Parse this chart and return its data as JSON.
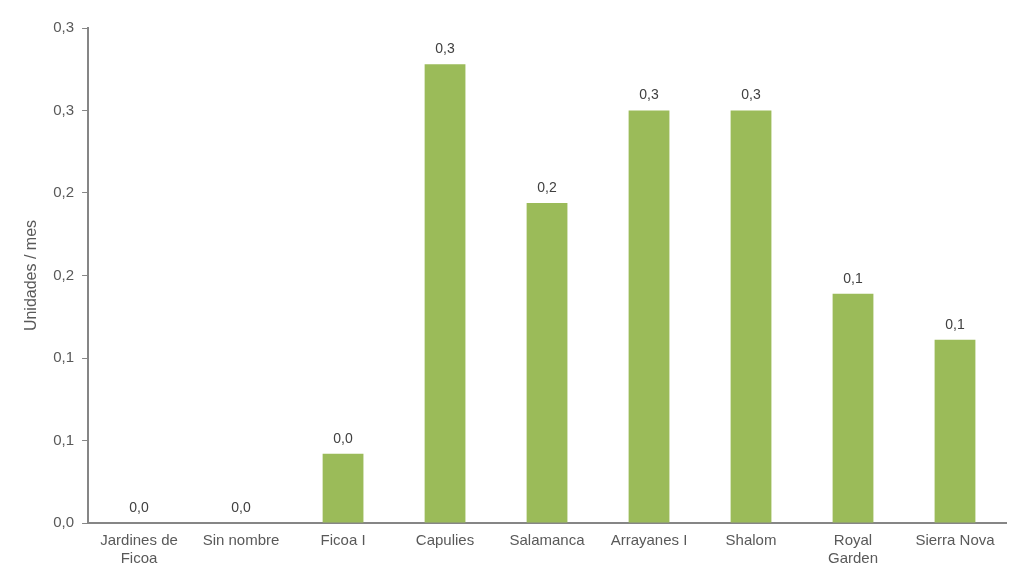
{
  "chart_data": {
    "type": "bar",
    "ylabel": "Unidades / mes",
    "categories": [
      "Jardines de Ficoa",
      "Sin nombre",
      "Ficoa I",
      "Capulies",
      "Salamanca",
      "Arrayanes I",
      "Shalom",
      "Royal Garden",
      "Sierra Nova"
    ],
    "values": [
      0,
      0,
      0.042,
      0.278,
      0.194,
      0.25,
      0.25,
      0.139,
      0.111
    ],
    "value_labels": [
      "0,0",
      "0,0",
      "0,0",
      "0,3",
      "0,2",
      "0,3",
      "0,3",
      "0,1",
      "0,1"
    ],
    "color": "#9bbb59",
    "ylim": [
      0,
      0.3
    ],
    "yticks": [
      {
        "value": 0,
        "label": "0,0"
      },
      {
        "value": 0.05,
        "label": "0,1"
      },
      {
        "value": 0.1,
        "label": "0,1"
      },
      {
        "value": 0.15,
        "label": "0,2"
      },
      {
        "value": 0.2,
        "label": "0,2"
      },
      {
        "value": 0.25,
        "label": "0,3"
      },
      {
        "value": 0.3,
        "label": "0,3"
      }
    ],
    "grid": false,
    "legend": false
  }
}
